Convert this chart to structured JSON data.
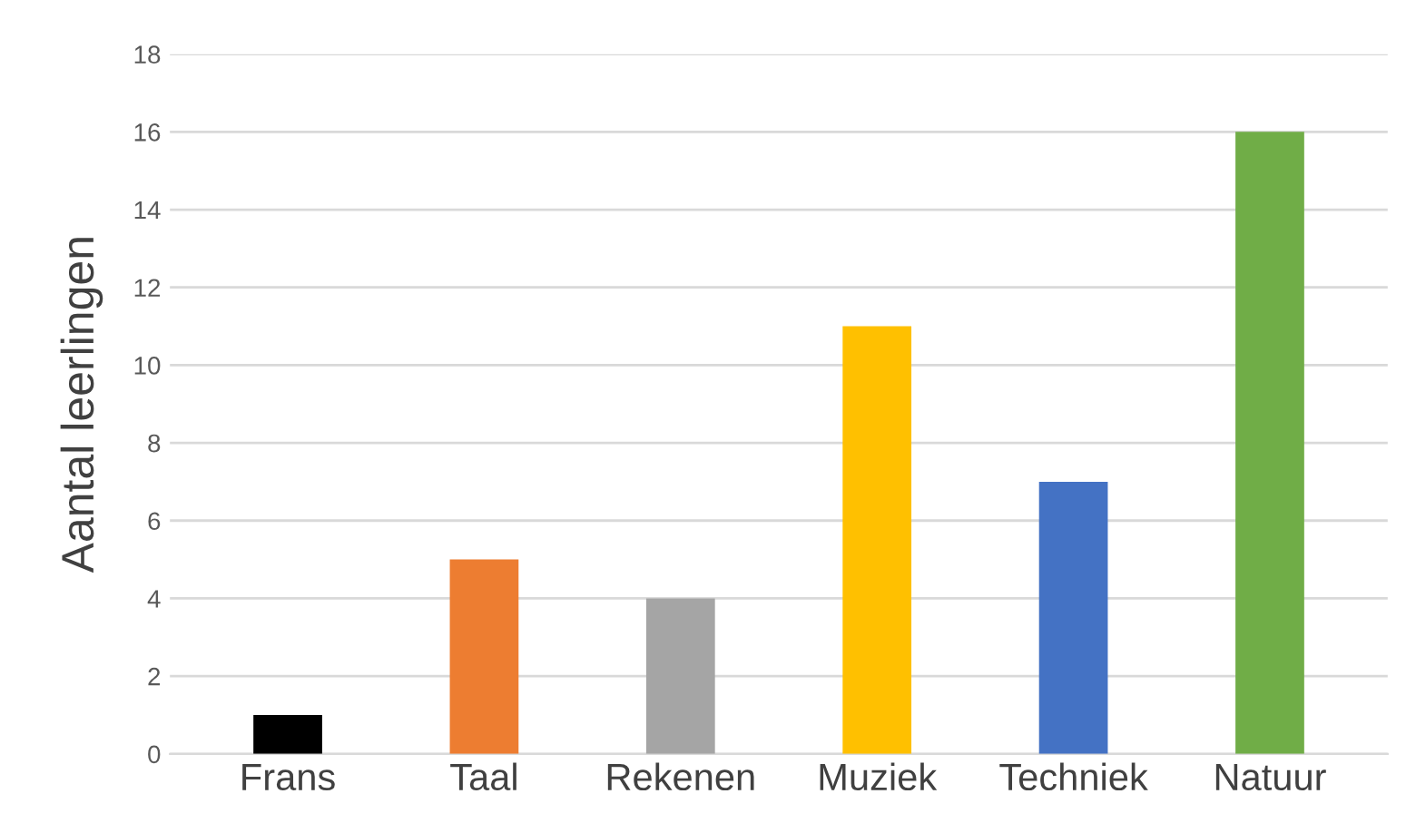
{
  "chart_data": {
    "type": "bar",
    "ylabel": "Aantal leerlingen",
    "categories": [
      "Frans",
      "Taal",
      "Rekenen",
      "Muziek",
      "Techniek",
      "Natuur"
    ],
    "values": [
      1,
      5,
      4,
      11,
      7,
      16
    ],
    "colors": [
      "#000000",
      "#ed7d31",
      "#a5a5a5",
      "#ffc000",
      "#4472c4",
      "#70ad47"
    ],
    "ylim": [
      0,
      18
    ],
    "yticks": [
      0,
      2,
      4,
      6,
      8,
      10,
      12,
      14,
      16,
      18
    ],
    "grid": "y"
  }
}
